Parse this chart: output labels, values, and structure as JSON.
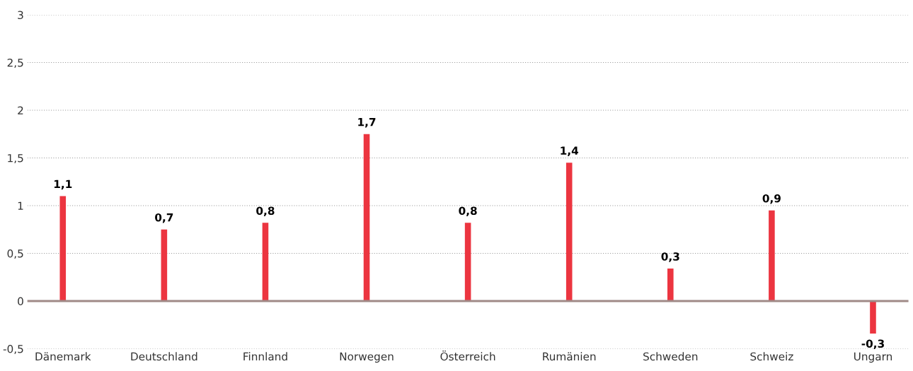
{
  "chart_data": {
    "type": "bar",
    "categories": [
      "Dänemark",
      "Deutschland",
      "Finnland",
      "Norwegen",
      "Österreich",
      "Rumänien",
      "Schweden",
      "Schweiz",
      "Ungarn"
    ],
    "values": [
      1.1,
      0.75,
      0.82,
      1.75,
      0.82,
      1.45,
      0.34,
      0.95,
      -0.34
    ],
    "value_labels": [
      "1,1",
      "0,7",
      "0,8",
      "1,7",
      "0,8",
      "1,4",
      "0,3",
      "0,9",
      "-0,3"
    ],
    "color": "#ec3540",
    "ylim": [
      -0.5,
      3
    ],
    "yticks": [
      {
        "value": -0.5,
        "label": "-0,5"
      },
      0,
      {
        "value": 0.5,
        "label": "0,5"
      },
      1,
      {
        "value": 1.5,
        "label": "1,5"
      },
      2,
      {
        "value": 2.5,
        "label": "2,5"
      },
      3
    ],
    "ref_lines": [
      {
        "axis": "y",
        "value": 0,
        "color": "#a08a87",
        "line_style": "solid"
      }
    ],
    "grid": "y"
  }
}
